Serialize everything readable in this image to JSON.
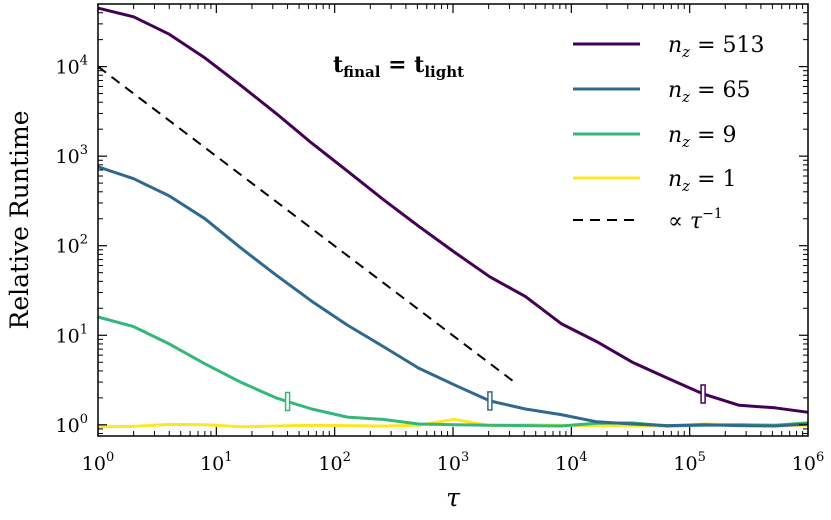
{
  "chart_data": {
    "type": "line",
    "xlabel": "τ",
    "ylabel": "Relative Runtime",
    "xscale": "log",
    "yscale": "log",
    "xlim": [
      1,
      1000000
    ],
    "ylim": [
      0.75,
      50000
    ],
    "grid": false,
    "legend_placement": "top-right",
    "x_ticks": [
      {
        "base": "10",
        "exp": "0",
        "value": 1
      },
      {
        "base": "10",
        "exp": "1",
        "value": 10
      },
      {
        "base": "10",
        "exp": "2",
        "value": 100
      },
      {
        "base": "10",
        "exp": "3",
        "value": 1000
      },
      {
        "base": "10",
        "exp": "4",
        "value": 10000
      },
      {
        "base": "10",
        "exp": "5",
        "value": 100000
      },
      {
        "base": "10",
        "exp": "6",
        "value": 1000000
      }
    ],
    "y_ticks": [
      {
        "base": "10",
        "exp": "0",
        "value": 1
      },
      {
        "base": "10",
        "exp": "1",
        "value": 10
      },
      {
        "base": "10",
        "exp": "2",
        "value": 100
      },
      {
        "base": "10",
        "exp": "3",
        "value": 1000
      },
      {
        "base": "10",
        "exp": "4",
        "value": 10000
      }
    ],
    "annotation": {
      "main": "t",
      "sub1": "final",
      "eq": " = ",
      "main2": "t",
      "sub2": "light"
    },
    "series": [
      {
        "name": "n_z = 513",
        "legend_main": "n",
        "legend_sub": "z",
        "legend_rest": " = 513",
        "color": "#440154",
        "dash": "none",
        "points": [
          [
            1,
            45000
          ],
          [
            2,
            36000
          ],
          [
            4,
            23000
          ],
          [
            8,
            12500
          ],
          [
            16,
            6200
          ],
          [
            32,
            3000
          ],
          [
            64,
            1400
          ],
          [
            128,
            680
          ],
          [
            256,
            330
          ],
          [
            512,
            165
          ],
          [
            1024,
            85
          ],
          [
            2048,
            45
          ],
          [
            4096,
            27
          ],
          [
            8192,
            13.5
          ],
          [
            16384,
            8.5
          ],
          [
            32768,
            5.0
          ],
          [
            65536,
            3.3
          ],
          [
            131072,
            2.2
          ],
          [
            262144,
            1.65
          ],
          [
            524288,
            1.55
          ],
          [
            1000000,
            1.38
          ]
        ],
        "marker_x": 130000
      },
      {
        "name": "n_z = 65",
        "legend_main": "n",
        "legend_sub": "z",
        "legend_rest": " = 65",
        "color": "#31688e",
        "dash": "none",
        "points": [
          [
            1,
            760
          ],
          [
            2,
            560
          ],
          [
            4,
            360
          ],
          [
            8,
            200
          ],
          [
            16,
            95
          ],
          [
            32,
            47
          ],
          [
            64,
            24
          ],
          [
            128,
            13
          ],
          [
            256,
            7.5
          ],
          [
            512,
            4.3
          ],
          [
            1024,
            2.8
          ],
          [
            2048,
            1.85
          ],
          [
            4096,
            1.5
          ],
          [
            8192,
            1.3
          ],
          [
            16384,
            1.08
          ],
          [
            32768,
            1.02
          ],
          [
            65536,
            0.98
          ],
          [
            131072,
            1.0
          ],
          [
            262144,
            0.98
          ],
          [
            524288,
            0.97
          ],
          [
            1000000,
            1.02
          ]
        ],
        "marker_x": 2050
      },
      {
        "name": "n_z = 9",
        "legend_main": "n",
        "legend_sub": "z",
        "legend_rest": " = 9",
        "color": "#35b779",
        "dash": "none",
        "points": [
          [
            1,
            16
          ],
          [
            2,
            12.5
          ],
          [
            4,
            8
          ],
          [
            8,
            4.8
          ],
          [
            16,
            3.0
          ],
          [
            32,
            2.0
          ],
          [
            64,
            1.5
          ],
          [
            128,
            1.22
          ],
          [
            256,
            1.15
          ],
          [
            512,
            1.02
          ],
          [
            1024,
            1.0
          ],
          [
            2048,
            0.99
          ],
          [
            4096,
            0.98
          ],
          [
            8192,
            0.97
          ],
          [
            16384,
            1.04
          ],
          [
            32768,
            1.05
          ],
          [
            65536,
            0.97
          ],
          [
            131072,
            0.99
          ],
          [
            262144,
            1.0
          ],
          [
            524288,
            0.99
          ],
          [
            1000000,
            1.05
          ]
        ],
        "marker_x": 40
      },
      {
        "name": "n_z = 1",
        "legend_main": "n",
        "legend_sub": "z",
        "legend_rest": " = 1",
        "color": "#fde725",
        "dash": "none",
        "points": [
          [
            1,
            0.95
          ],
          [
            2,
            0.96
          ],
          [
            4,
            1.01
          ],
          [
            8,
            1.0
          ],
          [
            16,
            0.95
          ],
          [
            32,
            0.97
          ],
          [
            64,
            0.99
          ],
          [
            128,
            0.98
          ],
          [
            256,
            0.97
          ],
          [
            512,
            0.99
          ],
          [
            1024,
            1.15
          ],
          [
            2048,
            0.98
          ],
          [
            4096,
            1.0
          ],
          [
            8192,
            0.99
          ],
          [
            16384,
            0.98
          ],
          [
            32768,
            0.98
          ],
          [
            65536,
            0.96
          ],
          [
            131072,
            1.02
          ],
          [
            262144,
            1.0
          ],
          [
            524288,
            0.99
          ],
          [
            1000000,
            0.99
          ]
        ]
      },
      {
        "name": "∝ τ^-1",
        "legend_main": "∝ τ",
        "legend_sup": "−1",
        "color": "#000000",
        "dash": "dashed",
        "points": [
          [
            1,
            10000
          ],
          [
            3300,
            3.0
          ]
        ]
      }
    ]
  }
}
